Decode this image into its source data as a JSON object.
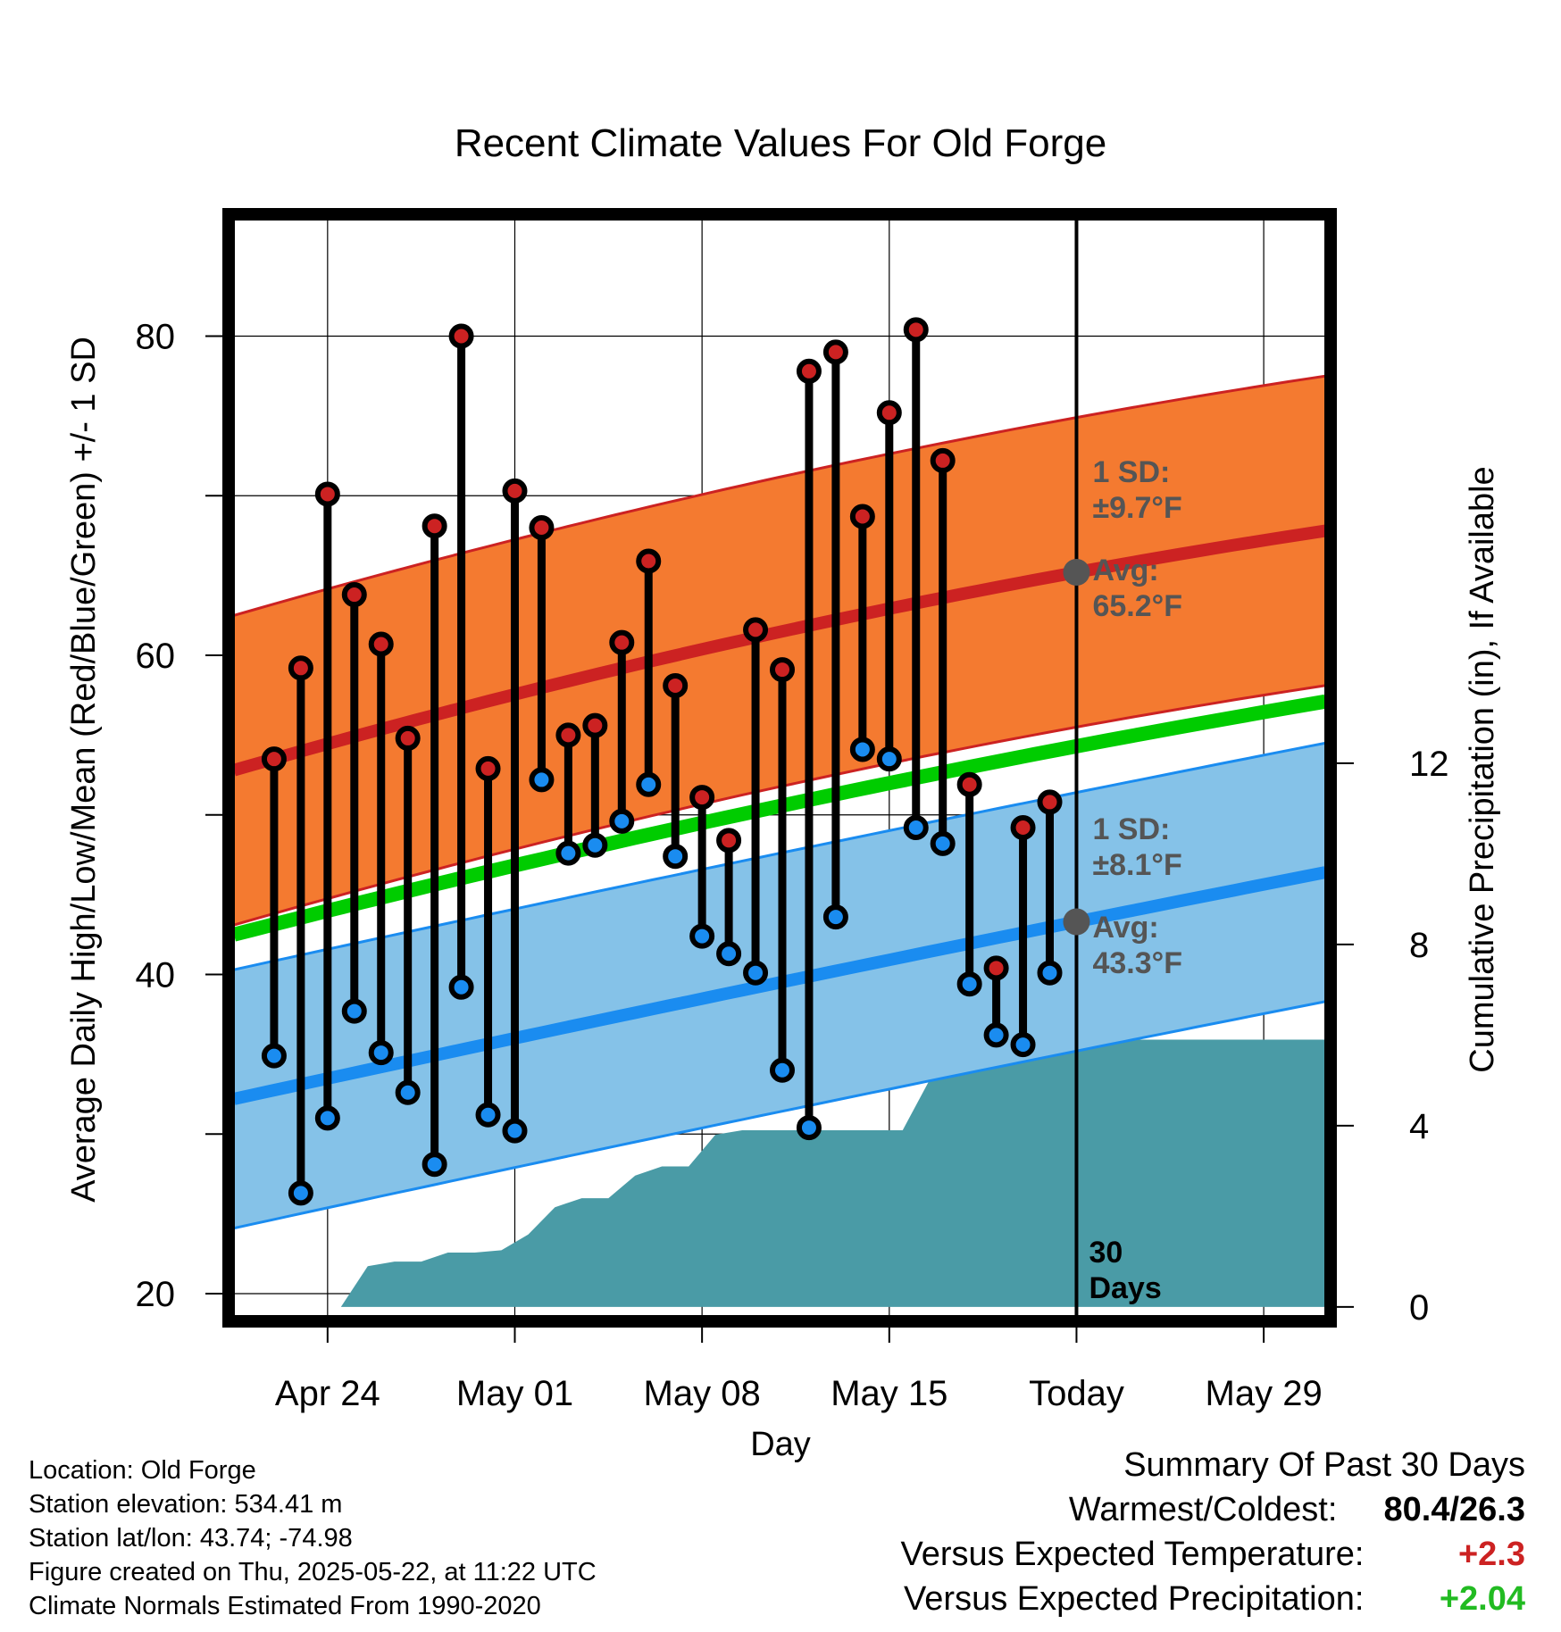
{
  "chart_data": {
    "type": "line",
    "title": "Recent Climate Values For Old Forge",
    "xlabel": "Day",
    "ylabel_left": "Average Daily High/Low/Mean (Red/Blue/Green) +/- 1 SD",
    "ylabel_right": "Cumulative Precipitation (in), If Available",
    "x_ticks": [
      {
        "day": 3,
        "label": "Apr 24"
      },
      {
        "day": 10,
        "label": "May 01"
      },
      {
        "day": 17,
        "label": "May 08"
      },
      {
        "day": 24,
        "label": "May 15"
      },
      {
        "day": 31,
        "label": "Today"
      },
      {
        "day": 38,
        "label": "May 29"
      }
    ],
    "xlim": [
      -0.5,
      40.3
    ],
    "ylim_left": [
      18.6,
      87.3
    ],
    "ylim_right": [
      -0.2,
      24
    ],
    "y_ticks_left": [
      20,
      40,
      60,
      80
    ],
    "y_ticks_right": [
      0,
      4,
      8,
      12
    ],
    "grid": true,
    "today_day": 31,
    "today_label": "30 Days",
    "normal_high": {
      "x": [
        -0.5,
        31,
        40.3
      ],
      "avg": [
        52.8,
        65.2,
        67.8
      ],
      "sd": 9.7,
      "avg_label": "Avg:",
      "avg_value": "65.2°F",
      "sd_label": "1 SD:",
      "sd_value": "±9.7°F"
    },
    "normal_low": {
      "x": [
        -0.5,
        31,
        40.3
      ],
      "avg": [
        32.2,
        43.3,
        46.4
      ],
      "sd": 8.1,
      "avg_label": "Avg:",
      "avg_value": "43.3°F",
      "sd_label": "1 SD:",
      "sd_value": "±8.1°F"
    },
    "normal_mean": {
      "x": [
        -0.5,
        31,
        40.3
      ],
      "values": [
        42.5,
        54.3,
        57.1
      ]
    },
    "daily": {
      "day": [
        1,
        2,
        3,
        4,
        5,
        6,
        7,
        8,
        9,
        10,
        11,
        12,
        13,
        14,
        15,
        16,
        17,
        18,
        19,
        20,
        21,
        22,
        23,
        24,
        25,
        26,
        27,
        28,
        29,
        30
      ],
      "high": [
        53.5,
        59.2,
        70.1,
        63.8,
        60.7,
        54.8,
        68.1,
        80.0,
        52.9,
        70.3,
        68.0,
        55.0,
        55.6,
        60.8,
        65.9,
        58.1,
        51.1,
        48.4,
        61.6,
        59.1,
        77.8,
        79.0,
        68.7,
        75.2,
        80.4,
        72.2,
        51.9,
        40.4,
        49.2,
        50.8
      ],
      "low": [
        34.9,
        26.3,
        31.0,
        37.7,
        35.1,
        32.6,
        28.1,
        39.2,
        31.2,
        30.2,
        52.2,
        47.6,
        48.1,
        49.6,
        51.9,
        47.4,
        42.4,
        41.3,
        40.1,
        34.0,
        30.4,
        43.6,
        54.1,
        53.5,
        49.2,
        48.2,
        39.4,
        36.2,
        35.6,
        40.1
      ]
    },
    "precip_cumulative": {
      "x": [
        -0.5,
        3.5,
        4.5,
        5.5,
        6.5,
        7.5,
        8.5,
        9.5,
        10.5,
        11.5,
        12.5,
        13.5,
        14.5,
        15.5,
        16.5,
        17.5,
        18.5,
        19.5,
        20.5,
        21.5,
        22.5,
        23.5,
        24.5,
        25.5,
        26.5,
        27.5,
        28.5,
        29.5,
        30.5,
        31,
        40.3
      ],
      "values": [
        0,
        0,
        0.9,
        1.0,
        1.0,
        1.2,
        1.2,
        1.25,
        1.6,
        2.2,
        2.4,
        2.4,
        2.9,
        3.1,
        3.1,
        3.8,
        3.9,
        3.9,
        3.9,
        3.9,
        3.9,
        3.9,
        3.9,
        5.0,
        5.8,
        5.8,
        5.8,
        5.9,
        5.9,
        5.9,
        5.9
      ]
    },
    "colors": {
      "high_band": "#f47a30",
      "high_line": "#cc2222",
      "low_band": "#85c2e8",
      "low_line": "#1a8cf0",
      "mean_line": "#00cc00",
      "precip": "#4a9ba6",
      "high_dot": "#cc2222",
      "low_dot": "#1a8cf0",
      "annotation": "#555555"
    }
  },
  "info": {
    "location": "Location: Old Forge",
    "elevation": "Station elevation: 534.41 m",
    "latlon": "Station lat/lon: 43.74; -74.98",
    "created": "Figure created on Thu, 2025-05-22, at 11:22 UTC",
    "normals": "Climate Normals Estimated From 1990-2020"
  },
  "summary": {
    "heading": "Summary Of Past 30 Days",
    "warmest_coldest_label": "Warmest/Coldest:",
    "warmest_coldest_value": "80.4/26.3",
    "temp_label": "Versus Expected Temperature:",
    "temp_value": "+2.3",
    "temp_color": "#cc2222",
    "precip_label": "Versus Expected Precipitation:",
    "precip_value": "+2.04",
    "precip_color": "#22bb22"
  }
}
